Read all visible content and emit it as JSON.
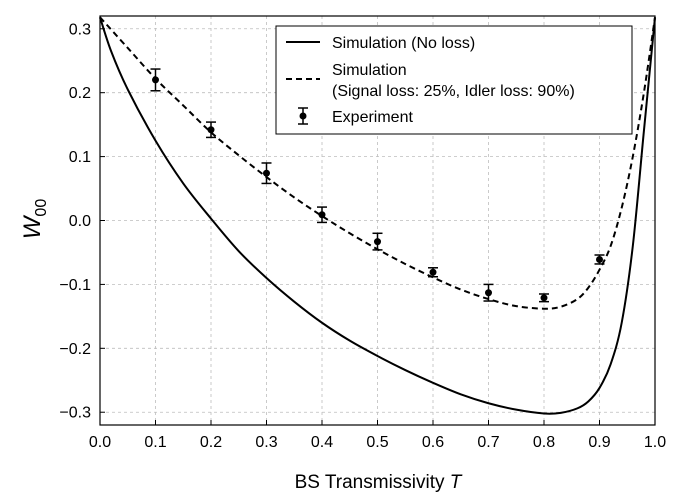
{
  "chart_data": {
    "type": "line",
    "title": "",
    "xlabel_main": "BS Transmissivity ",
    "xlabel_var": "T",
    "ylabel_var": "W",
    "ylabel_sub": "00",
    "xlim": [
      0.0,
      1.0
    ],
    "ylim": [
      -0.32,
      0.32
    ],
    "xticks": [
      0.0,
      0.1,
      0.2,
      0.3,
      0.4,
      0.5,
      0.6,
      0.7,
      0.8,
      0.9,
      1.0
    ],
    "xtick_labels": [
      "0.0",
      "0.1",
      "0.2",
      "0.3",
      "0.4",
      "0.5",
      "0.6",
      "0.7",
      "0.8",
      "0.9",
      "1.0"
    ],
    "yticks": [
      0.3,
      0.2,
      0.1,
      0.0,
      -0.1,
      -0.2,
      -0.3
    ],
    "ytick_labels": [
      "0.3",
      "0.2",
      "0.1",
      "0.0",
      "−0.1",
      "−0.2",
      "−0.3"
    ],
    "grid": true,
    "legend_position": "top-right",
    "series": [
      {
        "name": "Simulation (No loss)",
        "style": "solid",
        "x": [
          0.0,
          0.02,
          0.05,
          0.1,
          0.15,
          0.2,
          0.25,
          0.3,
          0.35,
          0.4,
          0.45,
          0.5,
          0.55,
          0.6,
          0.65,
          0.7,
          0.75,
          0.8,
          0.83,
          0.86,
          0.88,
          0.9,
          0.92,
          0.94,
          0.96,
          0.98,
          1.0
        ],
        "y": [
          0.318,
          0.265,
          0.205,
          0.125,
          0.058,
          0.003,
          -0.048,
          -0.09,
          -0.127,
          -0.16,
          -0.188,
          -0.212,
          -0.234,
          -0.254,
          -0.272,
          -0.286,
          -0.296,
          -0.302,
          -0.301,
          -0.294,
          -0.283,
          -0.262,
          -0.225,
          -0.16,
          -0.04,
          0.14,
          0.318
        ]
      },
      {
        "name": "Simulation",
        "name_line2": "(Signal loss: 25%, Idler loss: 90%)",
        "style": "dashed",
        "x": [
          0.0,
          0.05,
          0.1,
          0.15,
          0.2,
          0.25,
          0.3,
          0.35,
          0.4,
          0.45,
          0.5,
          0.55,
          0.6,
          0.65,
          0.7,
          0.75,
          0.8,
          0.83,
          0.86,
          0.88,
          0.9,
          0.92,
          0.94,
          0.96,
          0.98,
          1.0
        ],
        "y": [
          0.318,
          0.27,
          0.222,
          0.18,
          0.138,
          0.102,
          0.068,
          0.036,
          0.007,
          -0.02,
          -0.045,
          -0.068,
          -0.089,
          -0.108,
          -0.123,
          -0.134,
          -0.138,
          -0.135,
          -0.123,
          -0.105,
          -0.077,
          -0.04,
          0.02,
          0.1,
          0.2,
          0.318
        ]
      },
      {
        "name": "Experiment",
        "style": "errorbar",
        "x": [
          0.1,
          0.2,
          0.3,
          0.4,
          0.5,
          0.6,
          0.7,
          0.8,
          0.9
        ],
        "y": [
          0.22,
          0.142,
          0.074,
          0.009,
          -0.033,
          -0.081,
          -0.113,
          -0.121,
          -0.061
        ],
        "err": [
          0.017,
          0.012,
          0.016,
          0.012,
          0.013,
          0.007,
          0.013,
          0.006,
          0.007
        ]
      }
    ]
  }
}
